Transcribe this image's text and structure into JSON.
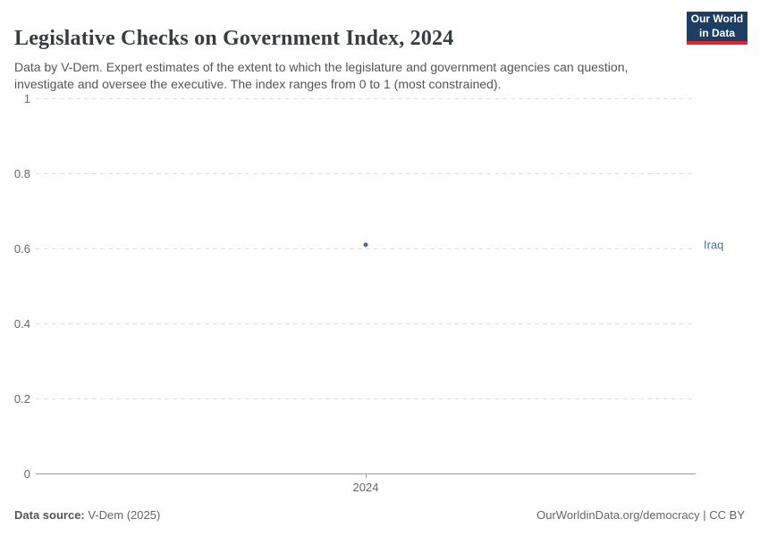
{
  "header": {
    "title": "Legislative Checks on Government Index, 2024",
    "subtitle": "Data by V-Dem. Expert estimates of the extent to which the legislature and government agencies can question, investigate and oversee the executive. The index ranges from 0 to 1 (most constrained)."
  },
  "logo": {
    "line1": "Our World",
    "line2": "in Data",
    "bg_color": "#1d3d63",
    "stripe_color": "#e0232e"
  },
  "chart_data": {
    "type": "scatter",
    "title": "Legislative Checks on Government Index, 2024",
    "x": [
      2024
    ],
    "series": [
      {
        "name": "Iraq",
        "values": [
          0.61
        ]
      }
    ],
    "xlabel": "",
    "ylabel": "",
    "ylim": [
      0,
      1
    ],
    "yticks": [
      0,
      0.2,
      0.4,
      0.6,
      0.8,
      1
    ],
    "xticks": [
      2024
    ],
    "grid": "horizontal dashed, solid baseline at 0",
    "legend": "entity label at right of plot",
    "point_color": "#4c6a9c",
    "gridline_color": "#dedede",
    "axis_color": "#9b9b9b"
  },
  "footer": {
    "source_label": "Data source:",
    "source_value": " V-Dem (2025)",
    "right": "OurWorldinData.org/democracy | CC BY"
  }
}
